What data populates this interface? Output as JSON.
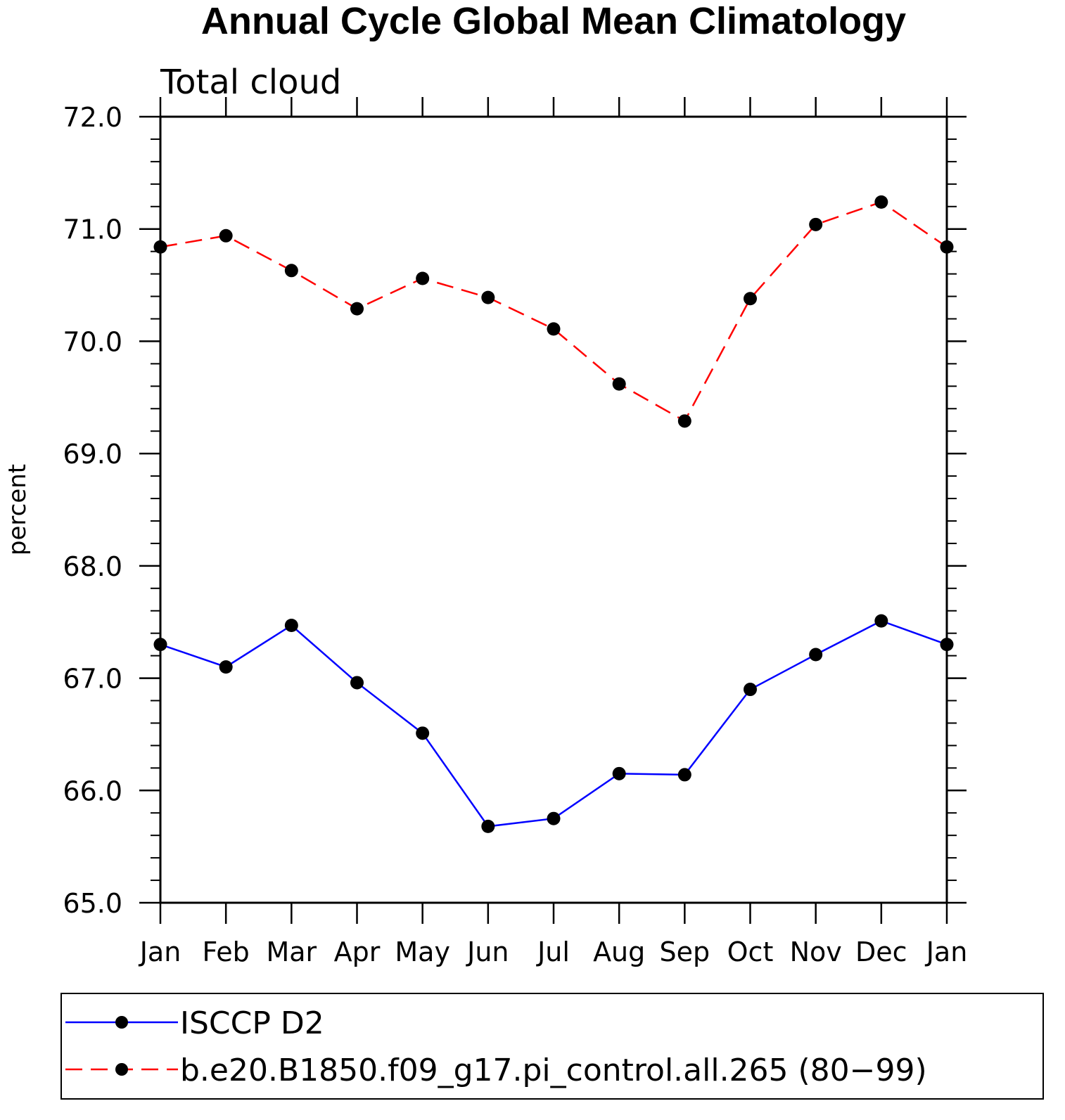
{
  "chart_data": {
    "type": "line",
    "title": "Annual Cycle Global Mean Climatology",
    "subtitle": "Total cloud",
    "xlabel": "",
    "ylabel": "percent",
    "categories": [
      "Jan",
      "Feb",
      "Mar",
      "Apr",
      "May",
      "Jun",
      "Jul",
      "Aug",
      "Sep",
      "Oct",
      "Nov",
      "Dec",
      "Jan"
    ],
    "ylim": [
      65.0,
      72.0
    ],
    "yticks": [
      "65.0",
      "66.0",
      "67.0",
      "68.0",
      "69.0",
      "70.0",
      "71.0",
      "72.0"
    ],
    "grid": false,
    "legend_position": "bottom",
    "series": [
      {
        "name": "ISCCP D2",
        "color": "#0000ff",
        "line_style": "solid",
        "marker": "filled-circle",
        "values": [
          67.3,
          67.1,
          67.47,
          66.96,
          66.51,
          65.68,
          65.75,
          66.15,
          66.14,
          66.9,
          67.21,
          67.51,
          67.3
        ]
      },
      {
        "name": "b.e20.B1850.f09_g17.pi_control.all.265 (80−99)",
        "color": "#ff0000",
        "line_style": "dashed",
        "marker": "filled-circle",
        "values": [
          70.84,
          70.94,
          70.63,
          70.29,
          70.56,
          70.39,
          70.11,
          69.62,
          69.29,
          70.38,
          71.04,
          71.24,
          70.84
        ]
      }
    ]
  }
}
